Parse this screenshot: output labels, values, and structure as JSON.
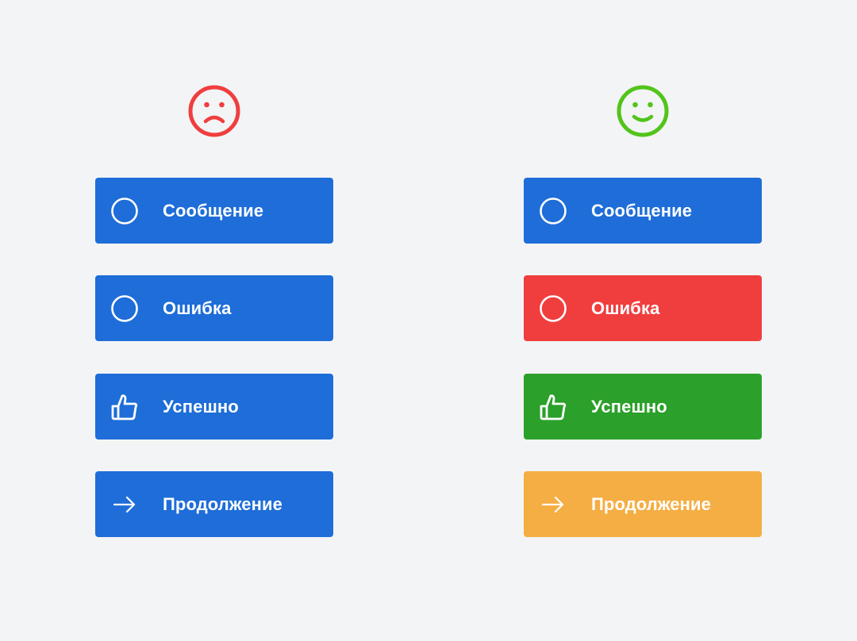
{
  "colors": {
    "bad": "#f03e3e",
    "good": "#52c41a",
    "blue": "#1e6dd8",
    "red": "#f03e3e",
    "green": "#2ba02a",
    "orange": "#f5ae43",
    "background": "#f3f4f6"
  },
  "columns": [
    {
      "face": "sad-face-icon",
      "buttons": [
        {
          "label": "Сообщение",
          "icon": "info-icon",
          "color": "#1e6dd8"
        },
        {
          "label": "Ошибка",
          "icon": "prohibited-icon",
          "color": "#1e6dd8"
        },
        {
          "label": "Успешно",
          "icon": "thumbs-up-icon",
          "color": "#1e6dd8"
        },
        {
          "label": "Продолжение",
          "icon": "arrow-right-icon",
          "color": "#1e6dd8"
        }
      ]
    },
    {
      "face": "happy-face-icon",
      "buttons": [
        {
          "label": "Сообщение",
          "icon": "info-icon",
          "color": "#1e6dd8"
        },
        {
          "label": "Ошибка",
          "icon": "prohibited-icon",
          "color": "#f03e3e"
        },
        {
          "label": "Успешно",
          "icon": "thumbs-up-icon",
          "color": "#2ba02a"
        },
        {
          "label": "Продолжение",
          "icon": "arrow-right-icon",
          "color": "#f5ae43"
        }
      ]
    }
  ]
}
